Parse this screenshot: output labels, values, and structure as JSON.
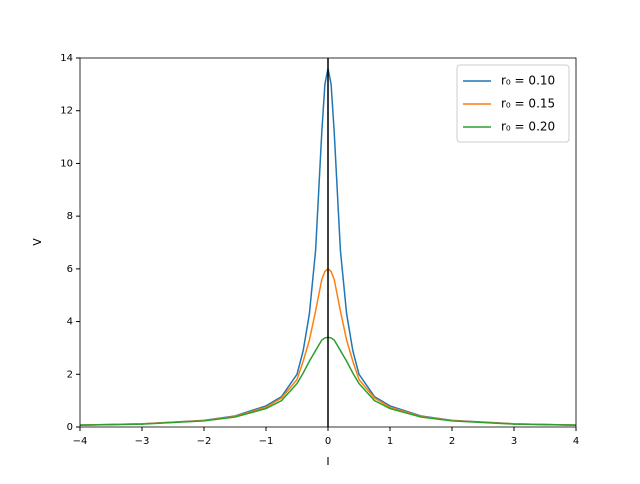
{
  "chart_data": {
    "type": "line",
    "xlabel": "I",
    "ylabel": "V",
    "x": [
      -4,
      -3,
      -2,
      -1.5,
      -1,
      -0.75,
      -0.5,
      -0.4,
      -0.3,
      -0.2,
      -0.1,
      -0.05,
      0,
      0.05,
      0.1,
      0.2,
      0.3,
      0.4,
      0.5,
      0.75,
      1,
      1.5,
      2,
      3,
      4
    ],
    "series": [
      {
        "name": "r₀ = 0.10",
        "color": "#1f77b4",
        "values": [
          0.07,
          0.12,
          0.25,
          0.42,
          0.8,
          1.15,
          2.0,
          2.9,
          4.3,
          6.7,
          11.2,
          13.0,
          13.6,
          13.0,
          11.2,
          6.7,
          4.3,
          2.9,
          2.0,
          1.15,
          0.8,
          0.42,
          0.25,
          0.12,
          0.07
        ]
      },
      {
        "name": "r₀ = 0.15",
        "color": "#ff7f0e",
        "values": [
          0.07,
          0.12,
          0.24,
          0.4,
          0.75,
          1.1,
          1.8,
          2.5,
          3.3,
          4.4,
          5.6,
          5.9,
          6.0,
          5.9,
          5.6,
          4.4,
          3.3,
          2.5,
          1.8,
          1.1,
          0.75,
          0.4,
          0.24,
          0.12,
          0.07
        ]
      },
      {
        "name": "r₀ = 0.20",
        "color": "#2ca02c",
        "values": [
          0.07,
          0.11,
          0.23,
          0.38,
          0.7,
          1.0,
          1.65,
          2.05,
          2.5,
          2.9,
          3.3,
          3.38,
          3.4,
          3.38,
          3.3,
          2.9,
          2.5,
          2.05,
          1.65,
          1.0,
          0.7,
          0.38,
          0.23,
          0.11,
          0.07
        ]
      }
    ],
    "xlim": [
      -4,
      4
    ],
    "xticks": [
      {
        "value": -4,
        "label": "−4"
      },
      {
        "value": -3,
        "label": "−3"
      },
      {
        "value": -2,
        "label": "−2"
      },
      {
        "value": -1,
        "label": "−1"
      },
      0,
      1,
      2,
      3,
      4
    ],
    "ylim": [
      0,
      14
    ],
    "yticks": [
      0,
      2,
      4,
      6,
      8,
      10,
      12,
      14
    ],
    "legend": "upper right"
  }
}
